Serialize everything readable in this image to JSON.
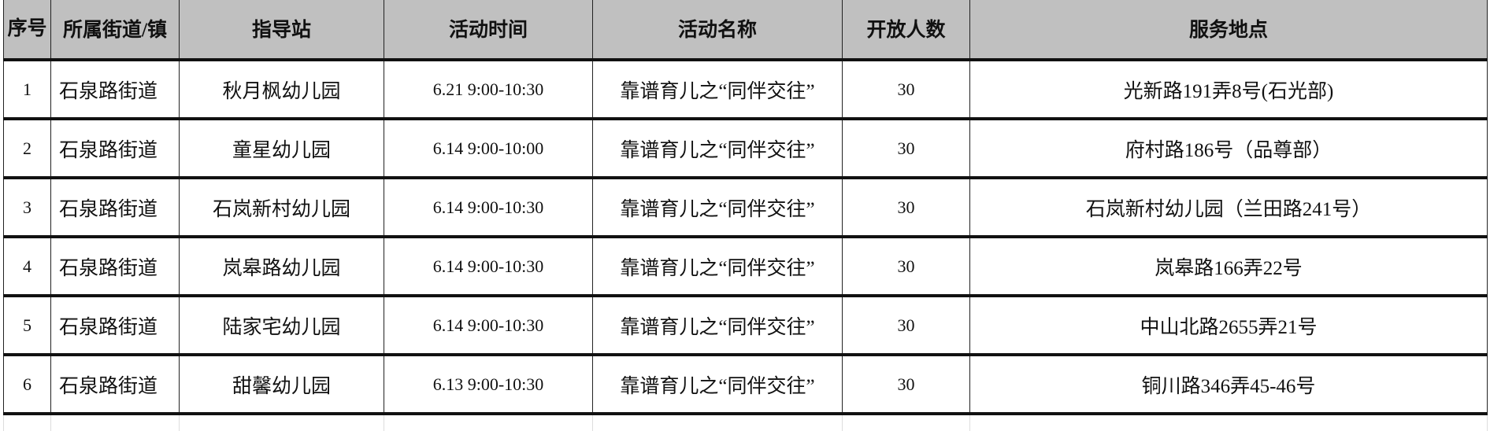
{
  "headers": [
    "序号",
    "所属街道/镇",
    "指导站",
    "活动时间",
    "活动名称",
    "开放人数",
    "服务地点"
  ],
  "rows": [
    {
      "seq": "1",
      "street": "石泉路街道",
      "station": "秋月枫幼儿园",
      "time": "6.21 9:00-10:30",
      "name": "靠谱育儿之“同伴交往”",
      "capacity": "30",
      "location": "光新路191弄8号(石光部)"
    },
    {
      "seq": "2",
      "street": "石泉路街道",
      "station": "童星幼儿园",
      "time": "6.14 9:00-10:00",
      "name": "靠谱育儿之“同伴交往”",
      "capacity": "30",
      "location": "府村路186号（品尊部）"
    },
    {
      "seq": "3",
      "street": "石泉路街道",
      "station": "石岚新村幼儿园",
      "time": "6.14 9:00-10:30",
      "name": "靠谱育儿之“同伴交往”",
      "capacity": "30",
      "location": "石岚新村幼儿园（兰田路241号）"
    },
    {
      "seq": "4",
      "street": "石泉路街道",
      "station": "岚皋路幼儿园",
      "time": "6.14 9:00-10:30",
      "name": "靠谱育儿之“同伴交往”",
      "capacity": "30",
      "location": "岚皋路166弄22号"
    },
    {
      "seq": "5",
      "street": "石泉路街道",
      "station": "陆家宅幼儿园",
      "time": "6.14 9:00-10:30",
      "name": "靠谱育儿之“同伴交往”",
      "capacity": "30",
      "location": "中山北路2655弄21号"
    },
    {
      "seq": "6",
      "street": "石泉路街道",
      "station": "甜馨幼儿园",
      "time": "6.13 9:00-10:30",
      "name": "靠谱育儿之“同伴交往”",
      "capacity": "30",
      "location": "铜川路346弄45-46号"
    }
  ]
}
